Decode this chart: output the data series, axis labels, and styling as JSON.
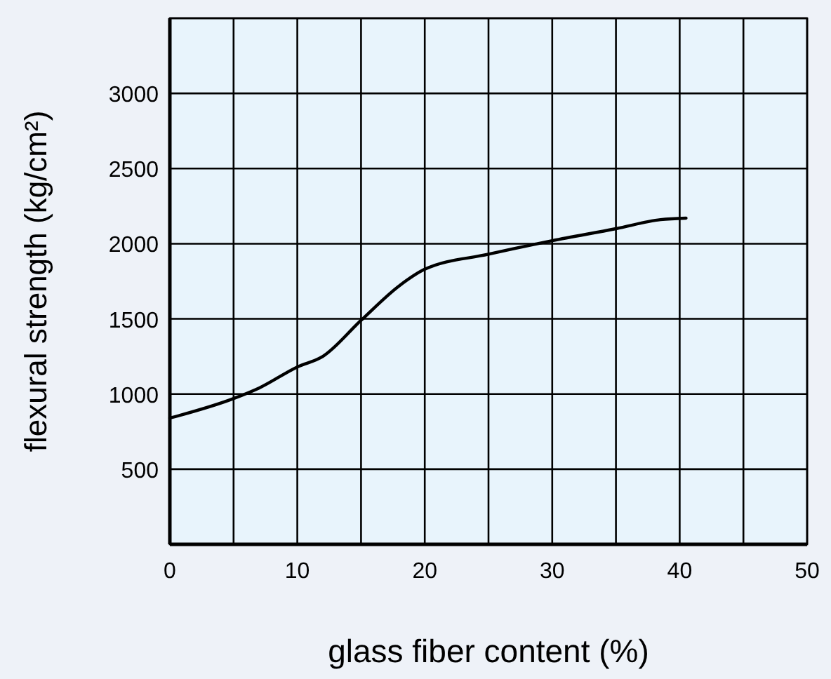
{
  "chart_data": {
    "type": "line",
    "xlabel": "glass fiber content (%)",
    "ylabel": "flexural strength (kg/cm²)",
    "x": [
      0,
      5,
      7,
      10,
      12,
      15,
      18,
      20,
      25,
      30,
      35,
      38.5,
      40.5
    ],
    "series": [
      {
        "color": "#000000",
        "values": [
          840,
          970,
          1040,
          1180,
          1250,
          1490,
          1720,
          1830,
          1930,
          2020,
          2100,
          2160,
          2170
        ]
      }
    ],
    "xlim": [
      0,
      50
    ],
    "ylim": [
      0,
      3500
    ],
    "xticks": [
      0,
      {
        "value": 5,
        "label": null
      },
      10,
      {
        "value": 15,
        "label": null
      },
      20,
      {
        "value": 25,
        "label": null
      },
      30,
      {
        "value": 35,
        "label": null
      },
      40,
      {
        "value": 45,
        "label": null
      },
      50
    ],
    "yticks": [
      {
        "value": 0,
        "label": null
      },
      500,
      1000,
      1500,
      2000,
      2500,
      3000,
      {
        "value": 3500,
        "label": null
      }
    ],
    "grid": true,
    "marker": "none",
    "line_style": "solid"
  }
}
